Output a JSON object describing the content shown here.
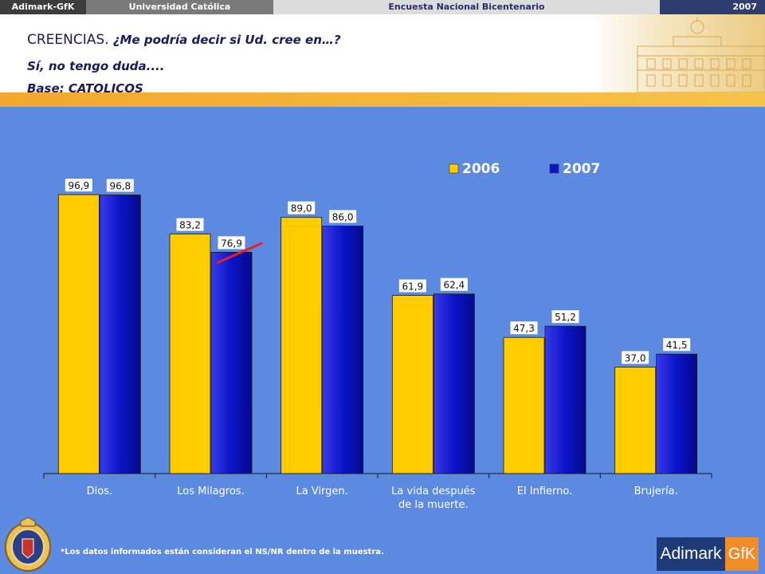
{
  "topbar": {
    "left": "Adimark-GfK",
    "university": "Universidad Católica",
    "survey": "Encuesta Nacional Bicentenario",
    "year": "2007"
  },
  "header": {
    "title_plain": "CREENCIAS.",
    "title_question": " ¿Me podría decir si Ud. cree en…?",
    "subtitle": "Sí, no tengo duda....",
    "base": "Base: CATOLICOS"
  },
  "footnote": "*Los datos informados están consideran el NS/NR dentro de la muestra.",
  "logo": {
    "left": "Adimark",
    "right": "GfK"
  },
  "chart_data": {
    "type": "bar",
    "categories": [
      "Dios.",
      "Los Milagros.",
      "La Virgen.",
      "La vida después de la muerte.",
      "El Infierno.",
      "Brujería."
    ],
    "category_lines": [
      [
        "Dios."
      ],
      [
        "Los Milagros."
      ],
      [
        "La Virgen."
      ],
      [
        "La vida después",
        "de la muerte."
      ],
      [
        "El Infierno."
      ],
      [
        "Brujería."
      ]
    ],
    "series": [
      {
        "name": "2006",
        "values": [
          96.9,
          83.2,
          89.0,
          61.9,
          47.3,
          37.0
        ],
        "labels": [
          "96,9",
          "83,2",
          "89,0",
          "61,9",
          "47,3",
          "37,0"
        ],
        "color": "#FFCC00"
      },
      {
        "name": "2007",
        "values": [
          96.8,
          76.9,
          86.0,
          62.4,
          51.2,
          41.5
        ],
        "labels": [
          "96,8",
          "76,9",
          "86,0",
          "62,4",
          "51,2",
          "41,5"
        ],
        "color": "#0A14C8"
      }
    ],
    "ylim": [
      0,
      100
    ],
    "legend": "top-right",
    "grid": false,
    "marker_color": "#E0202A"
  }
}
